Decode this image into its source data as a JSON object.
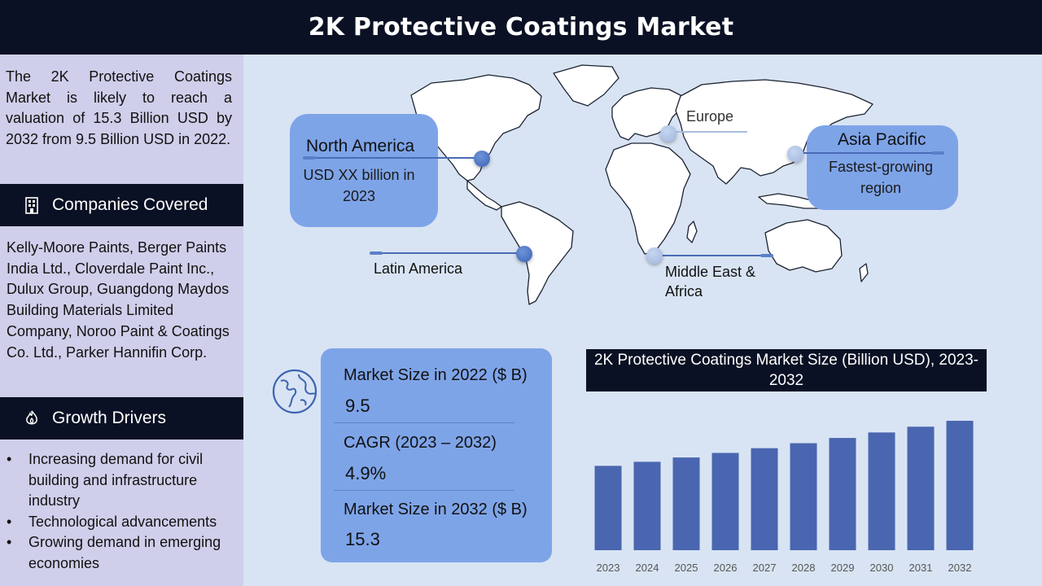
{
  "header": {
    "title": "2K Protective Coatings Market"
  },
  "sidebar": {
    "intro": "The 2K Protective Coatings Market is likely to reach a valuation of 15.3 Billion USD by 2032 from 9.5 Billion USD in 2022.",
    "companies_heading": "Companies Covered",
    "companies_icon": "building-icon",
    "companies_text": "Kelly-Moore Paints, Berger Paints India Ltd., Cloverdale Paint Inc., Dulux Group, Guangdong Maydos Building Materials Limited Company, Noroo Paint & Coatings Co. Ltd., Parker Hannifin Corp.",
    "drivers_heading": "Growth Drivers",
    "drivers_icon": "flame-icon",
    "drivers": [
      "Increasing demand for civil building and infrastructure industry",
      "Technological advancements",
      "Growing demand in emerging economies"
    ]
  },
  "regions": {
    "north_america": {
      "name": "North America",
      "detail": "USD XX billion in 2023"
    },
    "europe": {
      "name": "Europe"
    },
    "asia_pacific": {
      "name": "Asia Pacific",
      "detail": "Fastest-growing region"
    },
    "latin_america": {
      "name": "Latin America"
    },
    "mea": {
      "name": "Middle East & Africa"
    }
  },
  "stats": {
    "icon": "globe-icon",
    "items": [
      {
        "label": "Market Size in 2022 ($ B)",
        "value": "9.5"
      },
      {
        "label": "CAGR (2023 – 2032)",
        "value": "4.9%"
      },
      {
        "label": "Market Size in 2032 ($ B)",
        "value": "15.3"
      }
    ]
  },
  "chart_data": {
    "type": "bar",
    "title": "2K Protective Coatings Market Size (Billion USD), 2023-2032",
    "categories": [
      "2023",
      "2024",
      "2025",
      "2026",
      "2027",
      "2028",
      "2029",
      "2030",
      "2031",
      "2032"
    ],
    "values": [
      9.97,
      10.45,
      10.96,
      11.5,
      12.06,
      12.65,
      13.27,
      13.92,
      14.6,
      15.3
    ],
    "ylim": [
      0,
      15.3
    ],
    "grid": false,
    "legend": false,
    "colors": {
      "bar": "#4a66b0"
    }
  },
  "colors": {
    "header": "#0b1124",
    "sidebar": "#cfcfeb",
    "accent": "#7ea4e8",
    "background": "#d8e4f3"
  }
}
